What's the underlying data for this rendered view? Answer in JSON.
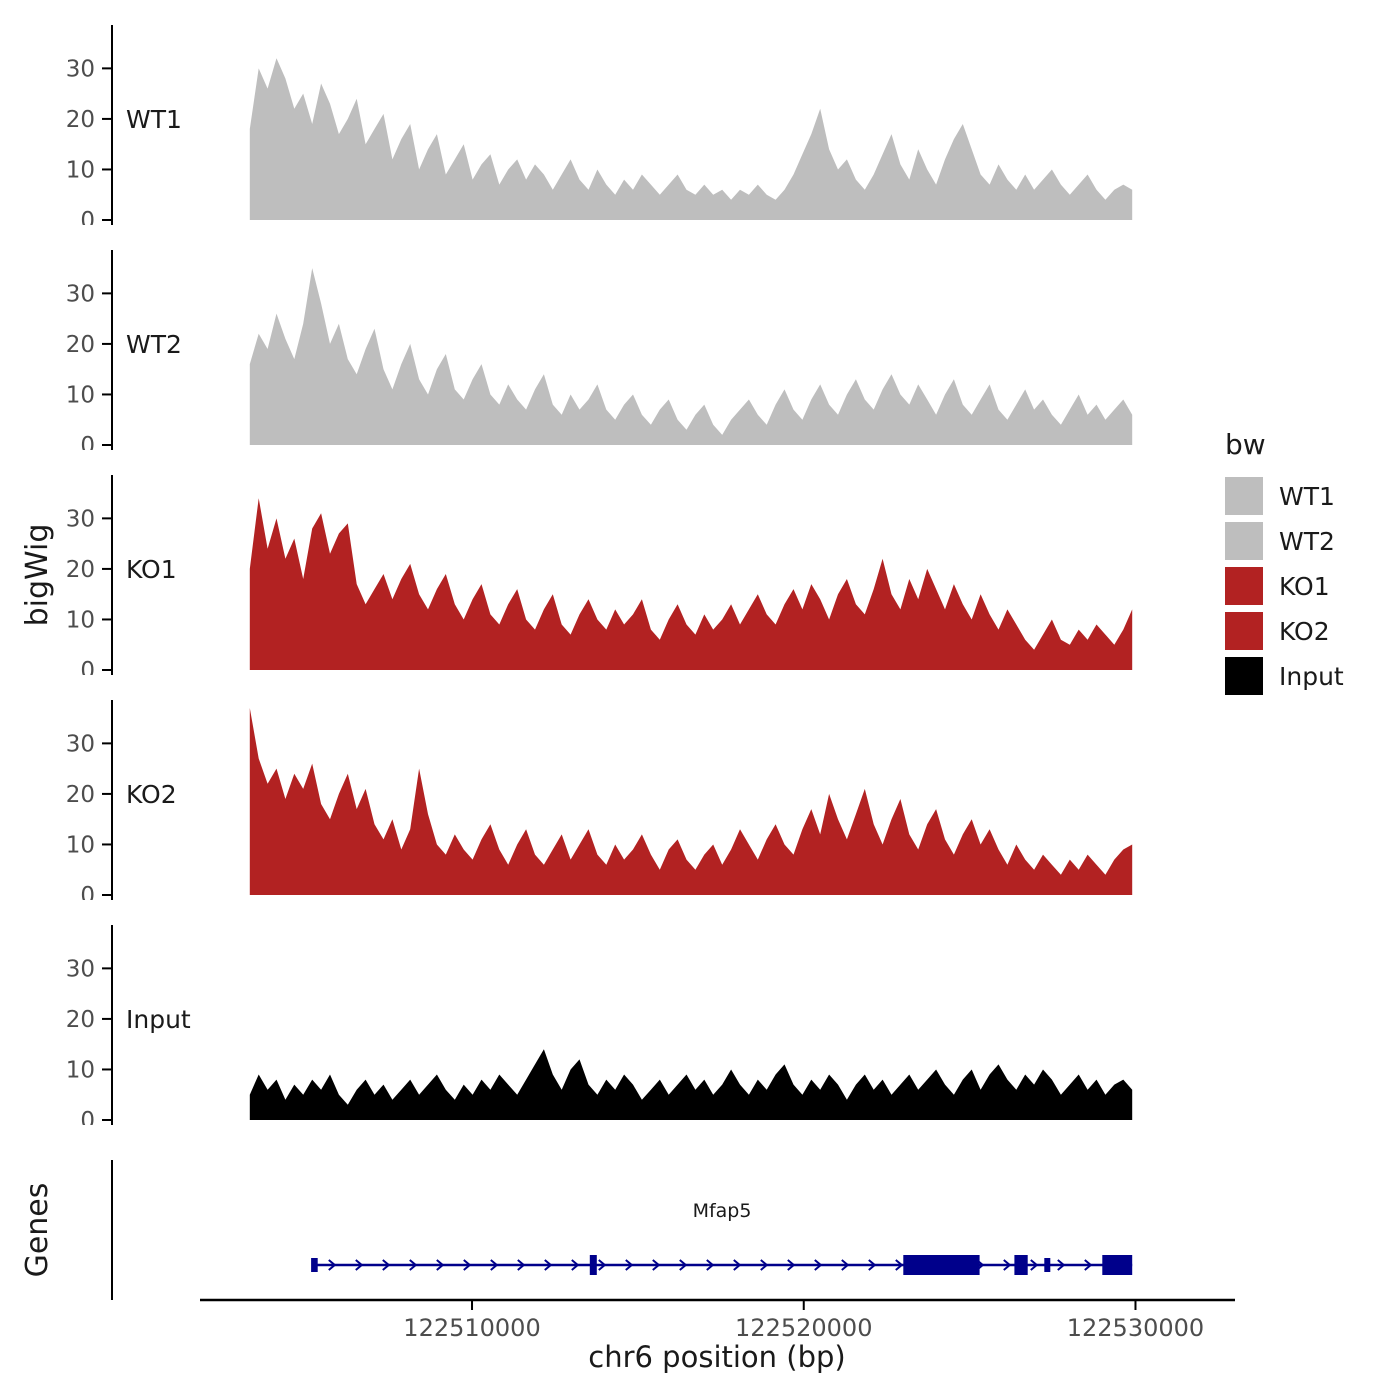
{
  "colors": {
    "wt": "#BEBEBE",
    "ko": "#B22222",
    "input": "#000000",
    "gene": "#00008B",
    "axis": "#000000",
    "tick_text": "#4d4d4d"
  },
  "y_axis": {
    "title": "bigWig",
    "ticks": [
      0,
      10,
      20,
      30
    ]
  },
  "x_axis": {
    "title": "chr6 position (bp)",
    "ticks": [
      122510000,
      122520000,
      122530000
    ],
    "domain": [
      122501800,
      122533000
    ]
  },
  "genes_panel": {
    "title": "Genes",
    "gene": {
      "name": "Mfap5",
      "strand": "+",
      "start": 122505200,
      "end": 122529900,
      "exons": [
        {
          "start": 122505150,
          "end": 122505350,
          "thick": false
        },
        {
          "start": 122513550,
          "end": 122513760,
          "thick": true
        },
        {
          "start": 122523000,
          "end": 122525300,
          "thick": true
        },
        {
          "start": 122526350,
          "end": 122526750,
          "thick": true
        },
        {
          "start": 122527250,
          "end": 122527430,
          "thick": false
        },
        {
          "start": 122529000,
          "end": 122529900,
          "thick": true
        }
      ]
    }
  },
  "legend": {
    "title": "bw",
    "entries": [
      {
        "label": "WT1",
        "color": "#BEBEBE"
      },
      {
        "label": "WT2",
        "color": "#BEBEBE"
      },
      {
        "label": "KO1",
        "color": "#B22222"
      },
      {
        "label": "KO2",
        "color": "#B22222"
      },
      {
        "label": "Input",
        "color": "#000000"
      }
    ]
  },
  "chart_data": {
    "type": "area",
    "title": "",
    "xlabel": "chr6 position (bp)",
    "ylabel": "bigWig",
    "ylim": [
      0,
      37
    ],
    "x_start": 122503300,
    "x_end": 122529900,
    "x_unit": "bp",
    "tracks": [
      {
        "name": "WT1",
        "color": "#BEBEBE",
        "values": [
          18,
          30,
          26,
          32,
          28,
          22,
          25,
          19,
          27,
          23,
          17,
          20,
          24,
          15,
          18,
          21,
          12,
          16,
          19,
          10,
          14,
          17,
          9,
          12,
          15,
          8,
          11,
          13,
          7,
          10,
          12,
          8,
          11,
          9,
          6,
          9,
          12,
          8,
          6,
          10,
          7,
          5,
          8,
          6,
          9,
          7,
          5,
          7,
          9,
          6,
          5,
          7,
          5,
          6,
          4,
          6,
          5,
          7,
          5,
          4,
          6,
          9,
          13,
          17,
          22,
          14,
          10,
          12,
          8,
          6,
          9,
          13,
          17,
          11,
          8,
          14,
          10,
          7,
          12,
          16,
          19,
          14,
          9,
          7,
          11,
          8,
          6,
          9,
          6,
          8,
          10,
          7,
          5,
          7,
          9,
          6,
          4,
          6,
          7,
          6
        ]
      },
      {
        "name": "WT2",
        "color": "#BEBEBE",
        "values": [
          16,
          22,
          19,
          26,
          21,
          17,
          24,
          35,
          28,
          20,
          24,
          17,
          14,
          19,
          23,
          15,
          11,
          16,
          20,
          13,
          10,
          15,
          18,
          11,
          9,
          13,
          16,
          10,
          8,
          12,
          9,
          7,
          11,
          14,
          8,
          6,
          10,
          7,
          9,
          12,
          7,
          5,
          8,
          10,
          6,
          4,
          7,
          9,
          5,
          3,
          6,
          8,
          4,
          2,
          5,
          7,
          9,
          6,
          4,
          8,
          11,
          7,
          5,
          9,
          12,
          8,
          6,
          10,
          13,
          9,
          7,
          11,
          14,
          10,
          8,
          12,
          9,
          6,
          10,
          13,
          8,
          6,
          9,
          12,
          7,
          5,
          8,
          11,
          7,
          9,
          6,
          4,
          7,
          10,
          6,
          8,
          5,
          7,
          9,
          6
        ]
      },
      {
        "name": "KO1",
        "color": "#B22222",
        "values": [
          20,
          34,
          24,
          30,
          22,
          26,
          18,
          28,
          31,
          23,
          27,
          29,
          17,
          13,
          16,
          19,
          14,
          18,
          21,
          15,
          12,
          16,
          19,
          13,
          10,
          14,
          17,
          11,
          9,
          13,
          16,
          10,
          8,
          12,
          15,
          9,
          7,
          11,
          14,
          10,
          8,
          12,
          9,
          11,
          14,
          8,
          6,
          10,
          13,
          9,
          7,
          11,
          8,
          10,
          13,
          9,
          12,
          15,
          11,
          9,
          13,
          16,
          12,
          17,
          14,
          10,
          15,
          18,
          13,
          11,
          16,
          22,
          15,
          12,
          18,
          14,
          20,
          16,
          12,
          17,
          13,
          10,
          15,
          11,
          8,
          12,
          9,
          6,
          4,
          7,
          10,
          6,
          5,
          8,
          6,
          9,
          7,
          5,
          8,
          12
        ]
      },
      {
        "name": "KO2",
        "color": "#B22222",
        "values": [
          37,
          27,
          22,
          25,
          19,
          24,
          21,
          26,
          18,
          15,
          20,
          24,
          17,
          21,
          14,
          11,
          15,
          9,
          13,
          25,
          16,
          10,
          8,
          12,
          9,
          7,
          11,
          14,
          9,
          6,
          10,
          13,
          8,
          6,
          9,
          12,
          7,
          10,
          13,
          8,
          6,
          10,
          7,
          9,
          12,
          8,
          5,
          9,
          11,
          7,
          5,
          8,
          10,
          6,
          9,
          13,
          10,
          7,
          11,
          14,
          10,
          8,
          13,
          17,
          12,
          20,
          15,
          11,
          16,
          21,
          14,
          10,
          15,
          19,
          12,
          9,
          14,
          17,
          11,
          8,
          12,
          15,
          10,
          13,
          9,
          6,
          10,
          7,
          5,
          8,
          6,
          4,
          7,
          5,
          8,
          6,
          4,
          7,
          9,
          10
        ]
      },
      {
        "name": "Input",
        "color": "#000000",
        "values": [
          5,
          9,
          6,
          8,
          4,
          7,
          5,
          8,
          6,
          9,
          5,
          3,
          6,
          8,
          5,
          7,
          4,
          6,
          8,
          5,
          7,
          9,
          6,
          4,
          7,
          5,
          8,
          6,
          9,
          7,
          5,
          8,
          11,
          14,
          9,
          6,
          10,
          12,
          7,
          5,
          8,
          6,
          9,
          7,
          4,
          6,
          8,
          5,
          7,
          9,
          6,
          8,
          5,
          7,
          10,
          7,
          5,
          8,
          6,
          9,
          11,
          7,
          5,
          8,
          6,
          9,
          7,
          4,
          7,
          9,
          6,
          8,
          5,
          7,
          9,
          6,
          8,
          10,
          7,
          5,
          8,
          10,
          6,
          9,
          11,
          8,
          6,
          9,
          7,
          10,
          8,
          5,
          7,
          9,
          6,
          8,
          5,
          7,
          8,
          6
        ]
      }
    ]
  }
}
